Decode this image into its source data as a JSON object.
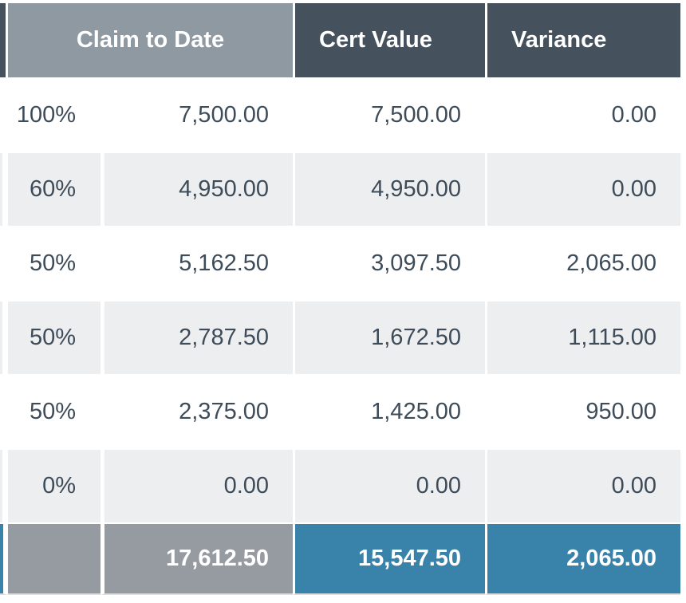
{
  "colors": {
    "header_dark": "#45515d",
    "header_gray": "#8f99a2",
    "row_alt": "#edeef0",
    "total_gray": "#969ba2",
    "total_blue": "#3982a9",
    "body_text": "#3e4c59",
    "divider": "#ffffff",
    "table_shadow": "#dcdfe1"
  },
  "table": {
    "headers": {
      "claim_to_date": "Claim to Date",
      "cert_value": "Cert Value",
      "variance": "Variance"
    },
    "rows": [
      {
        "percent": "100%",
        "claim": "7,500.00",
        "cert": "7,500.00",
        "variance": "0.00"
      },
      {
        "percent": "60%",
        "claim": "4,950.00",
        "cert": "4,950.00",
        "variance": "0.00"
      },
      {
        "percent": "50%",
        "claim": "5,162.50",
        "cert": "3,097.50",
        "variance": "2,065.00"
      },
      {
        "percent": "50%",
        "claim": "2,787.50",
        "cert": "1,672.50",
        "variance": "1,115.00"
      },
      {
        "percent": "50%",
        "claim": "2,375.00",
        "cert": "1,425.00",
        "variance": "950.00"
      },
      {
        "percent": "0%",
        "claim": "0.00",
        "cert": "0.00",
        "variance": "0.00"
      }
    ],
    "totals": {
      "claim": "17,612.50",
      "cert": "15,547.50",
      "variance": "2,065.00"
    }
  }
}
